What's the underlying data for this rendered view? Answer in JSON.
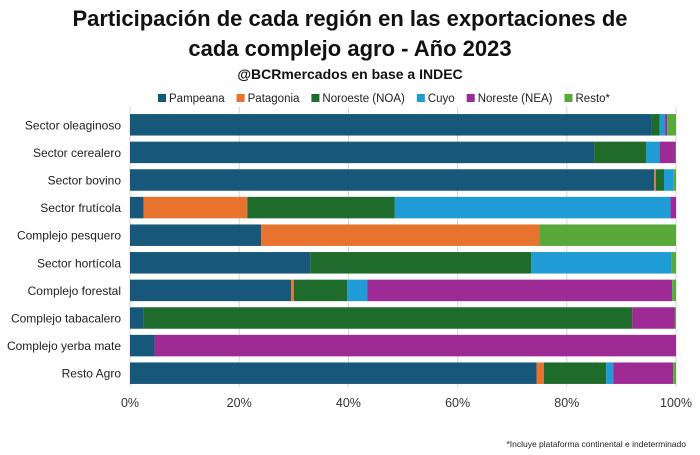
{
  "header": {
    "title_line1": "Participación de cada región en las exportaciones de",
    "title_line2": "cada complejo agro - Año 2023",
    "subtitle": "@BCRmercados en base a INDEC"
  },
  "footnote": "*Incluye plataforma continental e indeterminado",
  "chart_data": {
    "type": "bar",
    "orientation": "horizontal",
    "stacked": true,
    "categories": [
      "Sector oleaginoso",
      "Sector cerealero",
      "Sector bovino",
      "Sector frutícola",
      "Complejo pesquero",
      "Sector hortícola",
      "Complejo forestal",
      "Complejo tabacalero",
      "Complejo yerba mate",
      "Resto Agro"
    ],
    "series": [
      {
        "name": "Pampeana",
        "color": "#17587a",
        "values": [
          95.5,
          85.0,
          96.0,
          2.5,
          24.0,
          33.0,
          29.5,
          2.5,
          4.5,
          74.5
        ]
      },
      {
        "name": "Patagonia",
        "color": "#e8732f",
        "values": [
          0.0,
          0.0,
          0.3,
          19.0,
          51.0,
          0.0,
          0.5,
          0.0,
          0.0,
          1.3
        ]
      },
      {
        "name": "Noroeste (NOA)",
        "color": "#1e6b2b",
        "values": [
          1.5,
          9.5,
          1.5,
          27.0,
          0.0,
          40.5,
          9.8,
          89.5,
          0.0,
          11.4
        ]
      },
      {
        "name": "Cuyo",
        "color": "#1f9bd6",
        "values": [
          1.0,
          2.5,
          1.8,
          50.5,
          0.0,
          25.7,
          3.7,
          0.0,
          0.0,
          1.3
        ]
      },
      {
        "name": "Noreste (NEA)",
        "color": "#9d2a95",
        "values": [
          0.4,
          2.9,
          0.0,
          1.0,
          0.0,
          0.0,
          55.8,
          7.8,
          95.5,
          11.0
        ]
      },
      {
        "name": "Resto*",
        "color": "#59a83a",
        "values": [
          1.6,
          0.1,
          0.4,
          0.0,
          25.0,
          0.8,
          0.7,
          0.2,
          0.0,
          0.5
        ]
      }
    ],
    "x_ticks": [
      "0%",
      "20%",
      "40%",
      "60%",
      "80%",
      "100%"
    ],
    "xlim": [
      0,
      100
    ],
    "grid": true,
    "legend_position": "top"
  }
}
